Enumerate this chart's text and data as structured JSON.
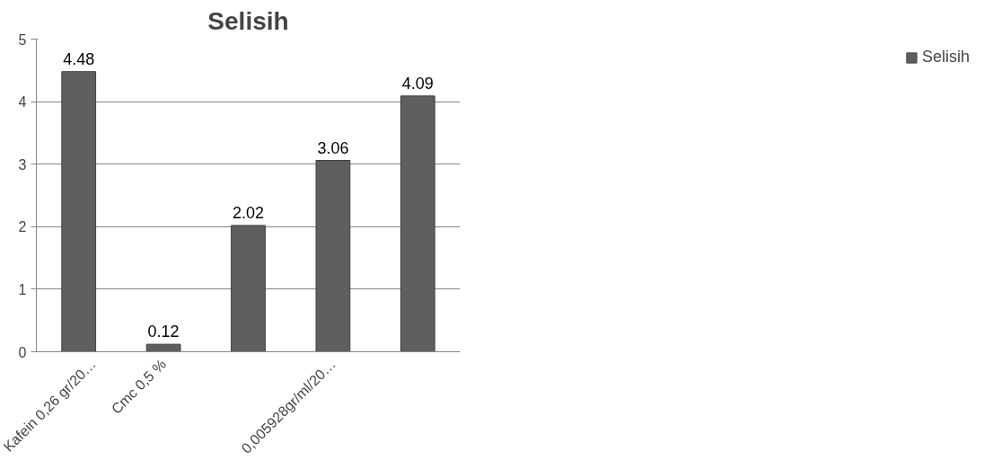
{
  "chart_data": {
    "type": "bar",
    "title": "Selisih",
    "categories": [
      "Kafein 0,26 gr/20…",
      "Cmc 0,5 %",
      null,
      "0,005928gr/ml/20…",
      null
    ],
    "series": [
      {
        "name": "Selisih",
        "color": "#5f5f5f",
        "values": [
          4.48,
          0.12,
          2.02,
          3.06,
          4.09
        ]
      }
    ],
    "ylim": [
      0,
      5
    ],
    "yticks": [
      0,
      1,
      2,
      3,
      4,
      5
    ],
    "grid": "y",
    "legend": "right",
    "data_labels": true
  }
}
